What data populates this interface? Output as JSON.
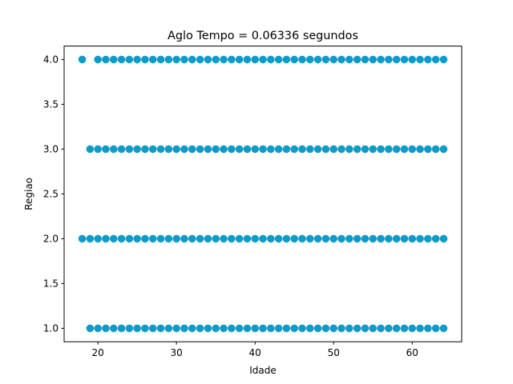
{
  "chart_data": {
    "type": "scatter",
    "title": "Aglo Tempo = 0.06336 segundos",
    "xlabel": "Idade",
    "ylabel": "Regiao",
    "xlim": [
      15.7,
      66.3
    ],
    "ylim": [
      0.85,
      4.15
    ],
    "x_ticks": [
      20,
      30,
      40,
      50,
      60
    ],
    "y_ticks": [
      1.0,
      1.5,
      2.0,
      2.5,
      3.0,
      3.5,
      4.0
    ],
    "x_tick_labels": [
      "20",
      "30",
      "40",
      "50",
      "60"
    ],
    "y_tick_labels": [
      "1.0",
      "1.5",
      "2.0",
      "2.5",
      "3.0",
      "3.5",
      "4.0"
    ],
    "marker_color": "#0e9bc8",
    "grid": false,
    "series": [
      {
        "points": [
          [
            18,
            4
          ],
          [
            20,
            4
          ],
          [
            21,
            4
          ],
          [
            22,
            4
          ],
          [
            23,
            4
          ],
          [
            24,
            4
          ],
          [
            25,
            4
          ],
          [
            26,
            4
          ],
          [
            27,
            4
          ],
          [
            28,
            4
          ],
          [
            29,
            4
          ],
          [
            30,
            4
          ],
          [
            31,
            4
          ],
          [
            32,
            4
          ],
          [
            33,
            4
          ],
          [
            34,
            4
          ],
          [
            35,
            4
          ],
          [
            36,
            4
          ],
          [
            37,
            4
          ],
          [
            38,
            4
          ],
          [
            39,
            4
          ],
          [
            40,
            4
          ],
          [
            41,
            4
          ],
          [
            42,
            4
          ],
          [
            43,
            4
          ],
          [
            44,
            4
          ],
          [
            45,
            4
          ],
          [
            46,
            4
          ],
          [
            47,
            4
          ],
          [
            48,
            4
          ],
          [
            49,
            4
          ],
          [
            50,
            4
          ],
          [
            51,
            4
          ],
          [
            52,
            4
          ],
          [
            53,
            4
          ],
          [
            54,
            4
          ],
          [
            55,
            4
          ],
          [
            56,
            4
          ],
          [
            57,
            4
          ],
          [
            58,
            4
          ],
          [
            59,
            4
          ],
          [
            60,
            4
          ],
          [
            61,
            4
          ],
          [
            62,
            4
          ],
          [
            63,
            4
          ],
          [
            64,
            4
          ],
          [
            19,
            3
          ],
          [
            20,
            3
          ],
          [
            21,
            3
          ],
          [
            22,
            3
          ],
          [
            23,
            3
          ],
          [
            24,
            3
          ],
          [
            25,
            3
          ],
          [
            26,
            3
          ],
          [
            27,
            3
          ],
          [
            28,
            3
          ],
          [
            29,
            3
          ],
          [
            30,
            3
          ],
          [
            31,
            3
          ],
          [
            32,
            3
          ],
          [
            33,
            3
          ],
          [
            34,
            3
          ],
          [
            35,
            3
          ],
          [
            36,
            3
          ],
          [
            37,
            3
          ],
          [
            38,
            3
          ],
          [
            39,
            3
          ],
          [
            40,
            3
          ],
          [
            41,
            3
          ],
          [
            42,
            3
          ],
          [
            43,
            3
          ],
          [
            44,
            3
          ],
          [
            45,
            3
          ],
          [
            46,
            3
          ],
          [
            47,
            3
          ],
          [
            48,
            3
          ],
          [
            49,
            3
          ],
          [
            50,
            3
          ],
          [
            51,
            3
          ],
          [
            52,
            3
          ],
          [
            53,
            3
          ],
          [
            54,
            3
          ],
          [
            55,
            3
          ],
          [
            56,
            3
          ],
          [
            57,
            3
          ],
          [
            58,
            3
          ],
          [
            59,
            3
          ],
          [
            60,
            3
          ],
          [
            61,
            3
          ],
          [
            62,
            3
          ],
          [
            63,
            3
          ],
          [
            64,
            3
          ],
          [
            18,
            2
          ],
          [
            19,
            2
          ],
          [
            20,
            2
          ],
          [
            21,
            2
          ],
          [
            22,
            2
          ],
          [
            23,
            2
          ],
          [
            24,
            2
          ],
          [
            25,
            2
          ],
          [
            26,
            2
          ],
          [
            27,
            2
          ],
          [
            28,
            2
          ],
          [
            29,
            2
          ],
          [
            30,
            2
          ],
          [
            31,
            2
          ],
          [
            32,
            2
          ],
          [
            33,
            2
          ],
          [
            34,
            2
          ],
          [
            35,
            2
          ],
          [
            36,
            2
          ],
          [
            37,
            2
          ],
          [
            38,
            2
          ],
          [
            39,
            2
          ],
          [
            40,
            2
          ],
          [
            41,
            2
          ],
          [
            42,
            2
          ],
          [
            43,
            2
          ],
          [
            44,
            2
          ],
          [
            45,
            2
          ],
          [
            46,
            2
          ],
          [
            47,
            2
          ],
          [
            48,
            2
          ],
          [
            49,
            2
          ],
          [
            50,
            2
          ],
          [
            51,
            2
          ],
          [
            52,
            2
          ],
          [
            53,
            2
          ],
          [
            54,
            2
          ],
          [
            55,
            2
          ],
          [
            56,
            2
          ],
          [
            57,
            2
          ],
          [
            58,
            2
          ],
          [
            59,
            2
          ],
          [
            60,
            2
          ],
          [
            61,
            2
          ],
          [
            62,
            2
          ],
          [
            63,
            2
          ],
          [
            64,
            2
          ],
          [
            19,
            1
          ],
          [
            20,
            1
          ],
          [
            21,
            1
          ],
          [
            22,
            1
          ],
          [
            23,
            1
          ],
          [
            24,
            1
          ],
          [
            25,
            1
          ],
          [
            26,
            1
          ],
          [
            27,
            1
          ],
          [
            28,
            1
          ],
          [
            29,
            1
          ],
          [
            30,
            1
          ],
          [
            31,
            1
          ],
          [
            32,
            1
          ],
          [
            33,
            1
          ],
          [
            34,
            1
          ],
          [
            35,
            1
          ],
          [
            36,
            1
          ],
          [
            37,
            1
          ],
          [
            38,
            1
          ],
          [
            39,
            1
          ],
          [
            40,
            1
          ],
          [
            41,
            1
          ],
          [
            42,
            1
          ],
          [
            43,
            1
          ],
          [
            44,
            1
          ],
          [
            45,
            1
          ],
          [
            46,
            1
          ],
          [
            47,
            1
          ],
          [
            48,
            1
          ],
          [
            49,
            1
          ],
          [
            50,
            1
          ],
          [
            51,
            1
          ],
          [
            52,
            1
          ],
          [
            53,
            1
          ],
          [
            54,
            1
          ],
          [
            55,
            1
          ],
          [
            56,
            1
          ],
          [
            57,
            1
          ],
          [
            58,
            1
          ],
          [
            59,
            1
          ],
          [
            60,
            1
          ],
          [
            61,
            1
          ],
          [
            62,
            1
          ],
          [
            63,
            1
          ],
          [
            64,
            1
          ]
        ]
      }
    ]
  }
}
